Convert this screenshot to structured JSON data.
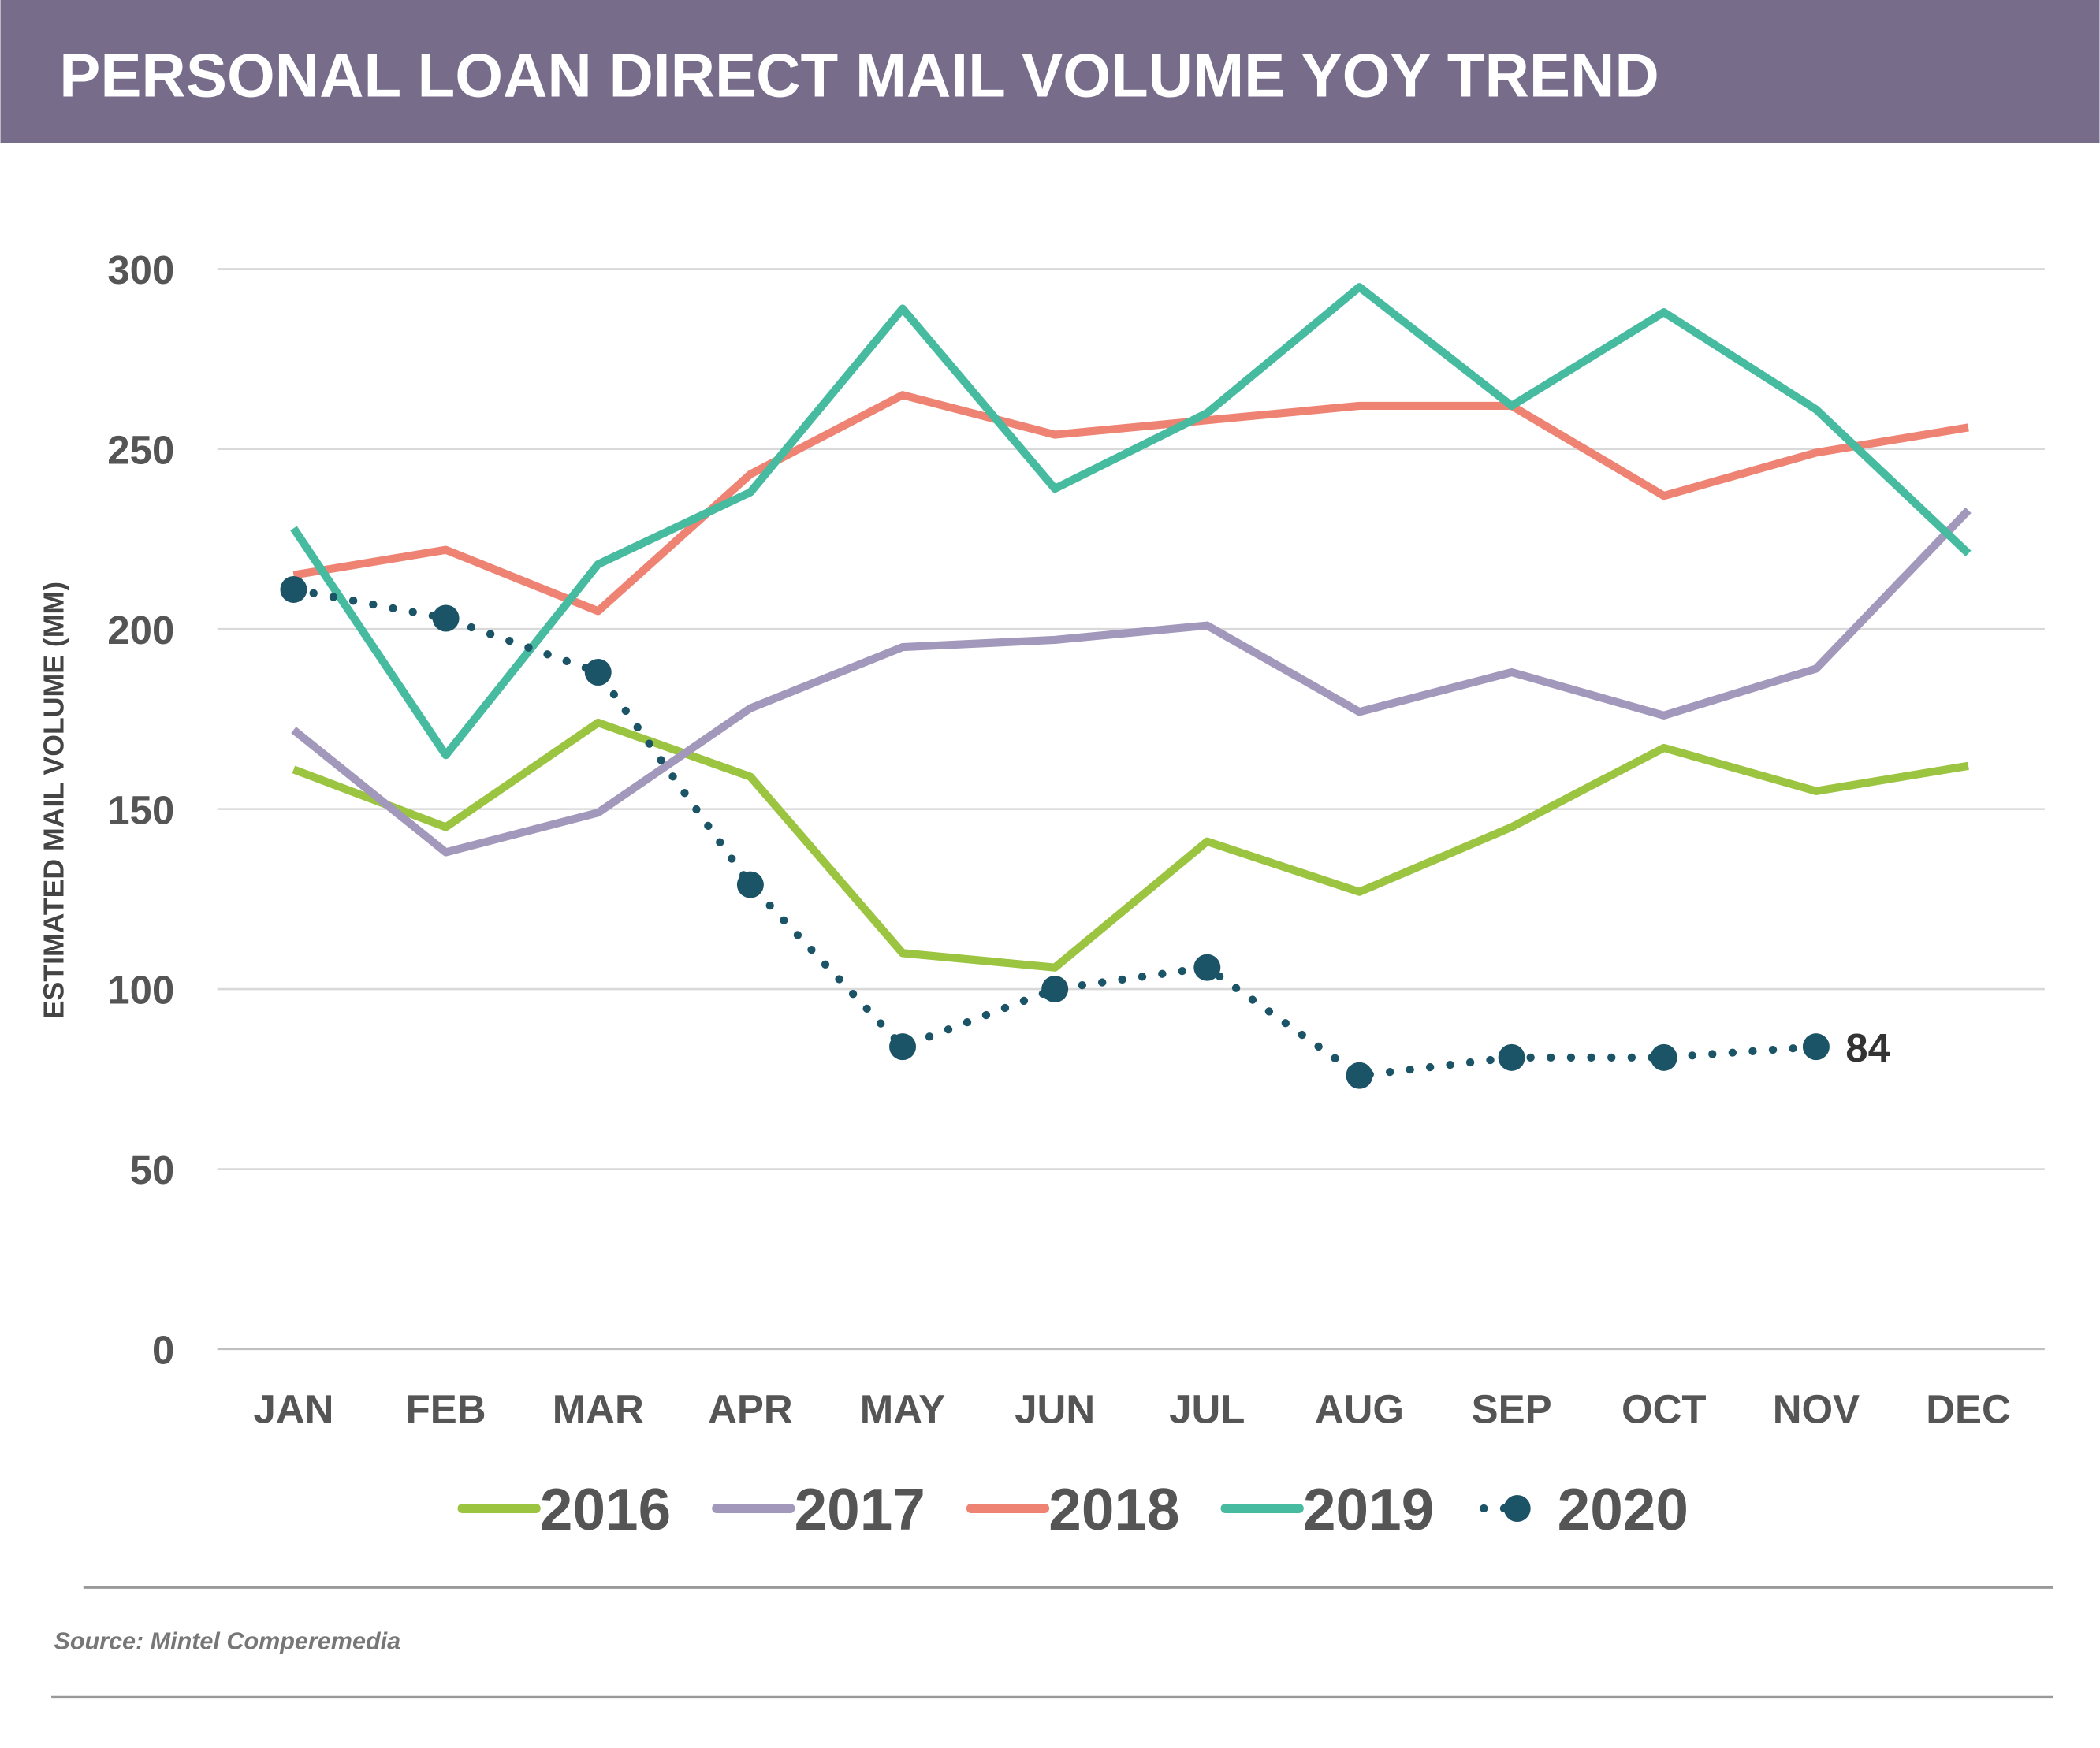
{
  "title": "PERSONAL LOAN DIRECT MAIL VOLUME YOY TREND",
  "source": "Source: Mintel Comperemedia",
  "colors": {
    "header_bg": "#776d8b",
    "text": "#555555",
    "grid": "#d9d9d9"
  },
  "chart_data": {
    "type": "line",
    "title": "PERSONAL LOAN DIRECT MAIL VOLUME YOY TREND",
    "xlabel": "",
    "ylabel": "ESTIMATED MAIL VOLUME (MM)",
    "ylim": [
      0,
      300
    ],
    "yticks": [
      "0",
      "50",
      "100",
      "150",
      "200",
      "250",
      "300"
    ],
    "grid": true,
    "legend": "bottom",
    "categories": [
      "JAN",
      "FEB",
      "MAR",
      "APR",
      "MAY",
      "JUN",
      "JUL",
      "AUG",
      "SEP",
      "OCT",
      "NOV",
      "DEC"
    ],
    "series": [
      {
        "name": "2016",
        "color": "#9bc440",
        "style": "solid",
        "values": [
          161,
          145,
          174,
          159,
          110,
          106,
          141,
          127,
          145,
          167,
          155,
          162
        ]
      },
      {
        "name": "2017",
        "color": "#a298bb",
        "style": "solid",
        "values": [
          172,
          138,
          149,
          178,
          195,
          197,
          201,
          177,
          188,
          176,
          189,
          233
        ]
      },
      {
        "name": "2018",
        "color": "#ee8373",
        "style": "solid",
        "values": [
          215,
          222,
          205,
          243,
          265,
          254,
          258,
          262,
          262,
          237,
          249,
          256
        ]
      },
      {
        "name": "2019",
        "color": "#46bba0",
        "style": "solid",
        "values": [
          228,
          165,
          218,
          238,
          289,
          239,
          260,
          295,
          262,
          288,
          261,
          221
        ]
      },
      {
        "name": "2020",
        "color": "#1c5467",
        "style": "dotted-markers",
        "values": [
          211,
          203,
          188,
          129,
          84,
          100,
          106,
          76,
          81,
          81,
          84,
          null
        ]
      }
    ],
    "annotations": [
      {
        "series": "2020",
        "category": "NOV",
        "text": "84"
      }
    ]
  }
}
